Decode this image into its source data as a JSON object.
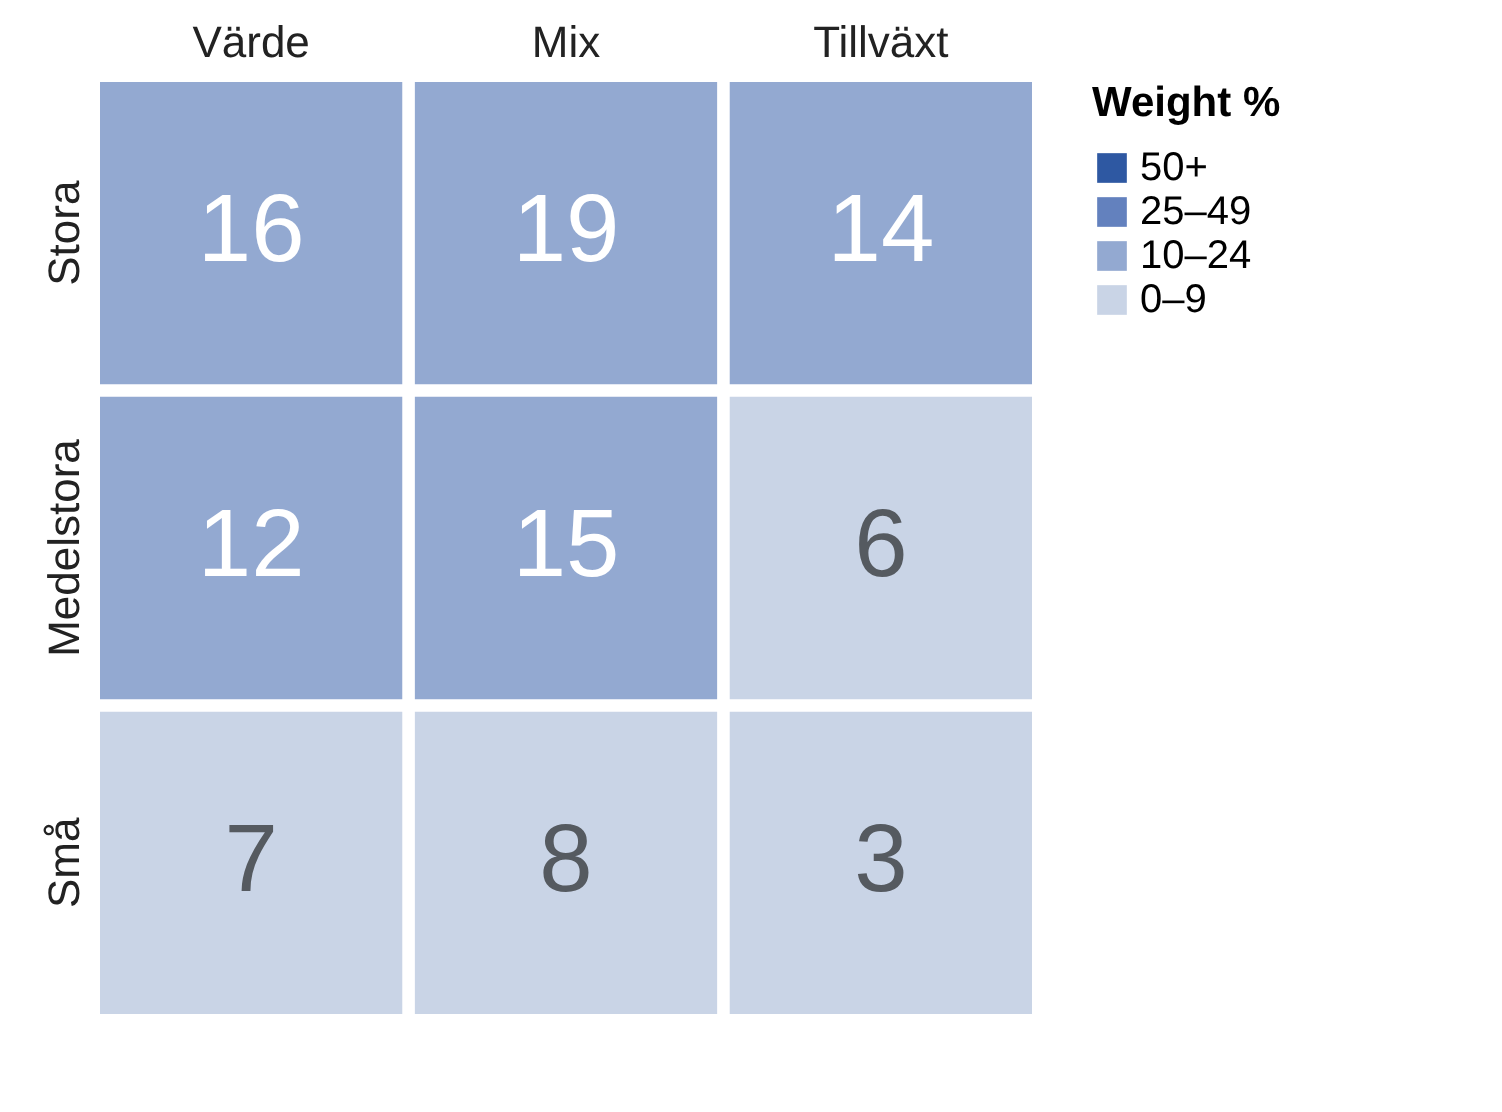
{
  "chart_data": {
    "type": "heatmap",
    "categories": [
      "Värde",
      "Mix",
      "Tillväxt"
    ],
    "y_categories": [
      "Stora",
      "Medelstora",
      "Små"
    ],
    "cells": [
      [
        16,
        19,
        14
      ],
      [
        12,
        15,
        6
      ],
      [
        7,
        8,
        3
      ]
    ],
    "colors": [
      [
        "#93a9d1",
        "#93a9d1",
        "#93a9d1"
      ],
      [
        "#93a9d1",
        "#93a9d1",
        "#c9d4e6"
      ],
      [
        "#c9d4e6",
        "#c9d4e6",
        "#c9d4e6"
      ]
    ],
    "legend_title": "Weight %",
    "legend": "right",
    "series": [
      {
        "name": "50+",
        "color": "#2e58a2",
        "values": [
          null,
          null,
          null
        ]
      },
      {
        "name": "25–49",
        "color": "#6381be",
        "values": [
          null,
          null,
          null
        ]
      },
      {
        "name": "10–24",
        "color": "#93a9d1",
        "values": [
          null,
          null,
          null
        ]
      },
      {
        "name": "0–9",
        "color": "#c9d4e6",
        "values": [
          null,
          null,
          null
        ]
      }
    ],
    "data_labels": true
  }
}
